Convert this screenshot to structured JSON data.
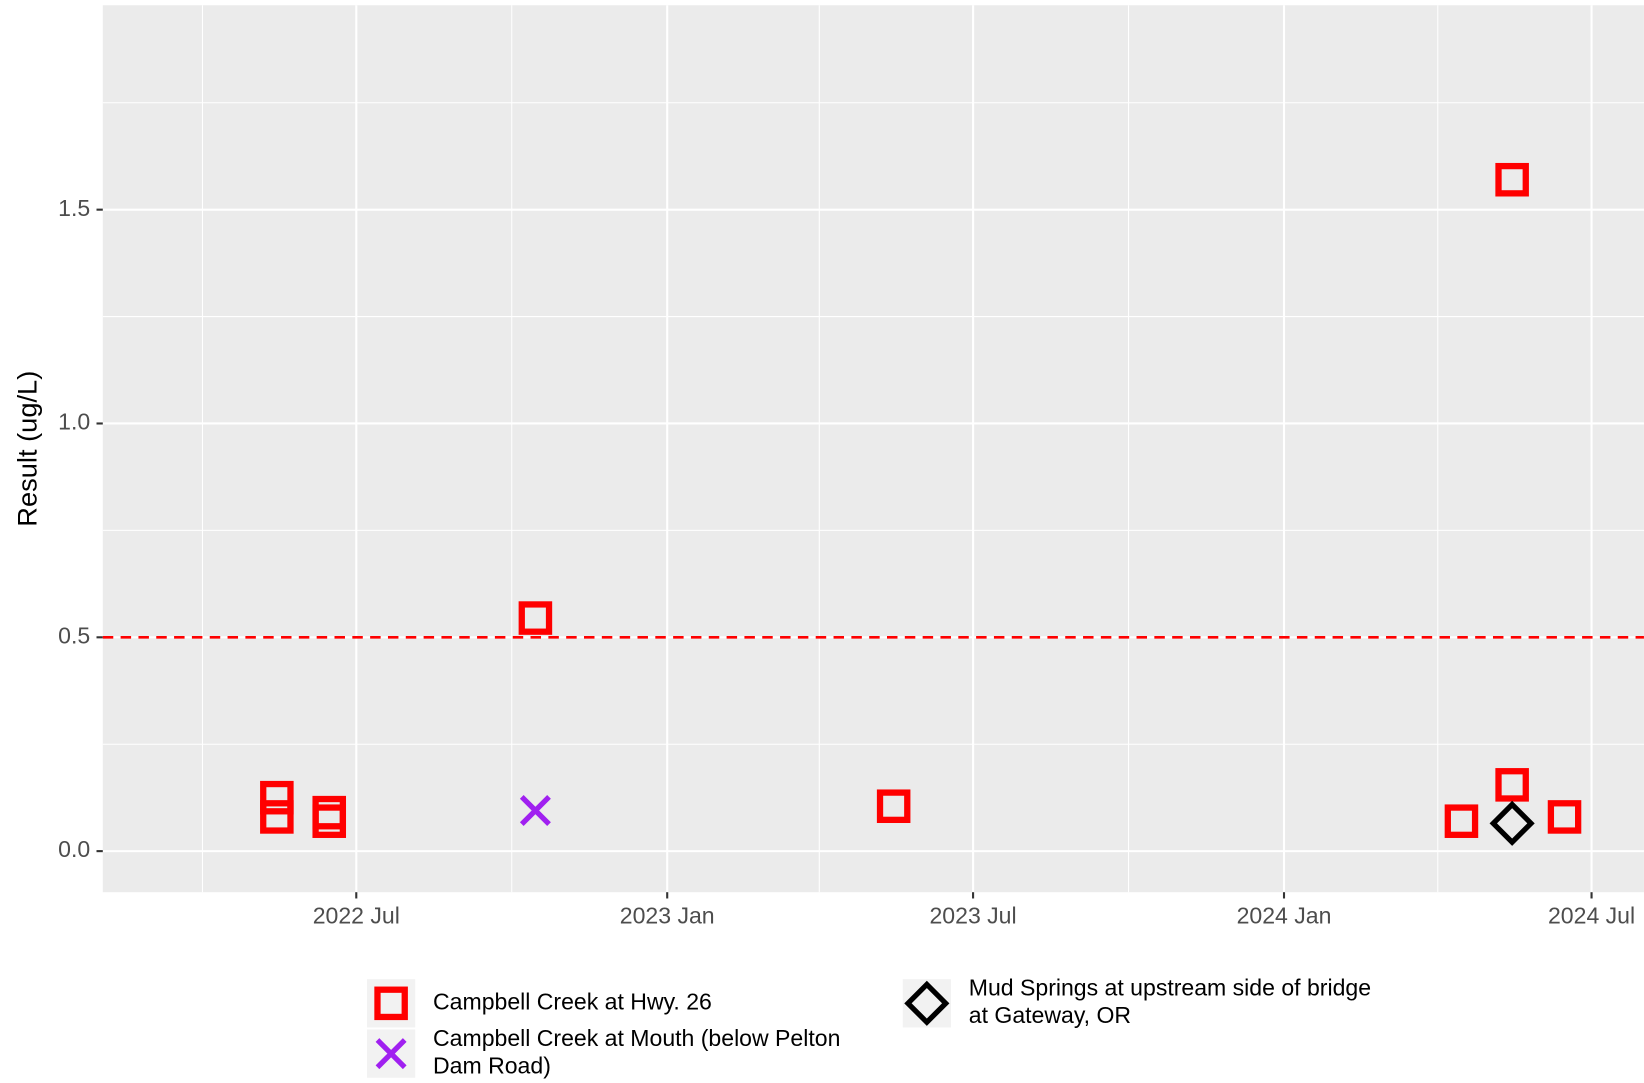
{
  "chart_data": {
    "type": "scatter",
    "y_label": "Result (ug/L)",
    "xlim": [
      "2022-02",
      "2024-08"
    ],
    "xticks": [
      {
        "value": "2022-07",
        "label": "2022 Jul"
      },
      {
        "value": "2023-01",
        "label": "2023 Jan"
      },
      {
        "value": "2023-07",
        "label": "2023 Jul"
      },
      {
        "value": "2024-01",
        "label": "2024 Jan"
      },
      {
        "value": "2024-07",
        "label": "2024 Jul"
      }
    ],
    "xminor": [
      "2022-04",
      "2022-10",
      "2023-04",
      "2023-10",
      "2024-04"
    ],
    "ylim": [
      -0.096,
      1.978
    ],
    "yticks": [
      {
        "value": 0,
        "label": "0.0"
      },
      0.5,
      {
        "value": 1,
        "label": "1.0"
      },
      1.5
    ],
    "yminor": [
      0.25,
      0.75,
      1.25,
      1.75
    ],
    "grid": true,
    "hline": {
      "value": 0.5,
      "color": "#ff0000"
    },
    "series": [
      {
        "name": "Campbell Creek at Hwy. 26",
        "color": "#ff0000",
        "shape": "square",
        "x": [
          "2022-05",
          "2022-05",
          "2022-06",
          "2022-06",
          "2022-10",
          "2023-05",
          "2024-04",
          "2024-05",
          "2024-05",
          "2024-06"
        ],
        "values": [
          0.08,
          0.125,
          0.07,
          0.09,
          0.545,
          0.105,
          0.07,
          1.57,
          0.155,
          0.08
        ]
      },
      {
        "name": "Campbell Creek at Mouth (below Pelton Dam Road)",
        "color": "#a020f0",
        "shape": "x",
        "x": [
          "2022-10"
        ],
        "values": [
          0.095
        ]
      },
      {
        "name": "Mud Springs at upstream side of bridge at Gateway, OR",
        "color": "#000000",
        "shape": "diamond",
        "x": [
          "2024-05"
        ],
        "values": [
          0.065
        ]
      }
    ]
  }
}
